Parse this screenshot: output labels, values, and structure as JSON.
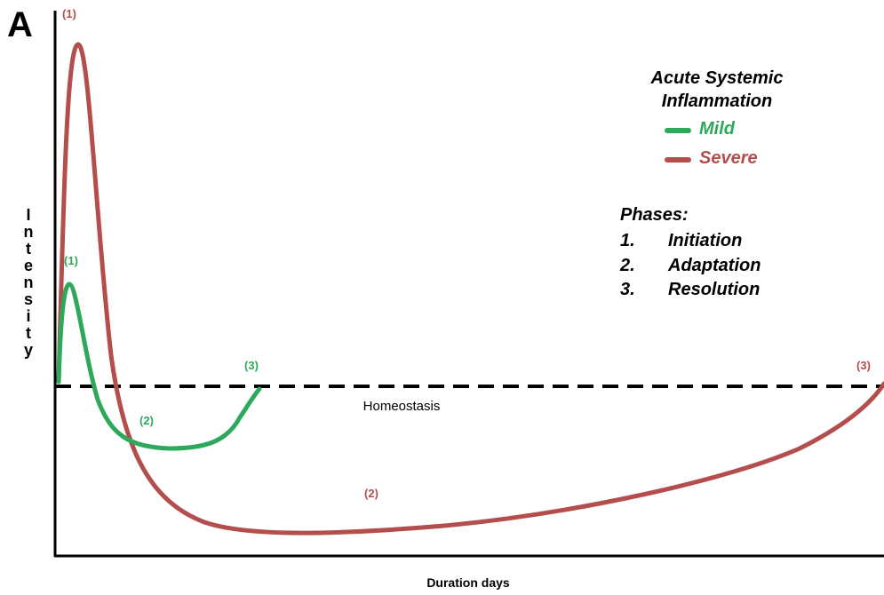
{
  "panel_label": "A",
  "y_axis_label": "Intensity",
  "x_axis_label": "Duration days",
  "baseline_label": "Homeostasis",
  "legend": {
    "title": "Acute Systemic Inflammation",
    "items": [
      {
        "label": "Mild",
        "color": "#2ea85a"
      },
      {
        "label": "Severe",
        "color": "#b34e4d"
      }
    ]
  },
  "phases": {
    "title": "Phases:",
    "items": [
      {
        "number": "1.",
        "name": "Initiation"
      },
      {
        "number": "2.",
        "name": "Adaptation"
      },
      {
        "number": "3.",
        "name": "Resolution"
      }
    ]
  },
  "curve_labels": {
    "mild": [
      "(1)",
      "(2)",
      "(3)"
    ],
    "severe": [
      "(1)",
      "(2)",
      "(3)"
    ]
  }
}
